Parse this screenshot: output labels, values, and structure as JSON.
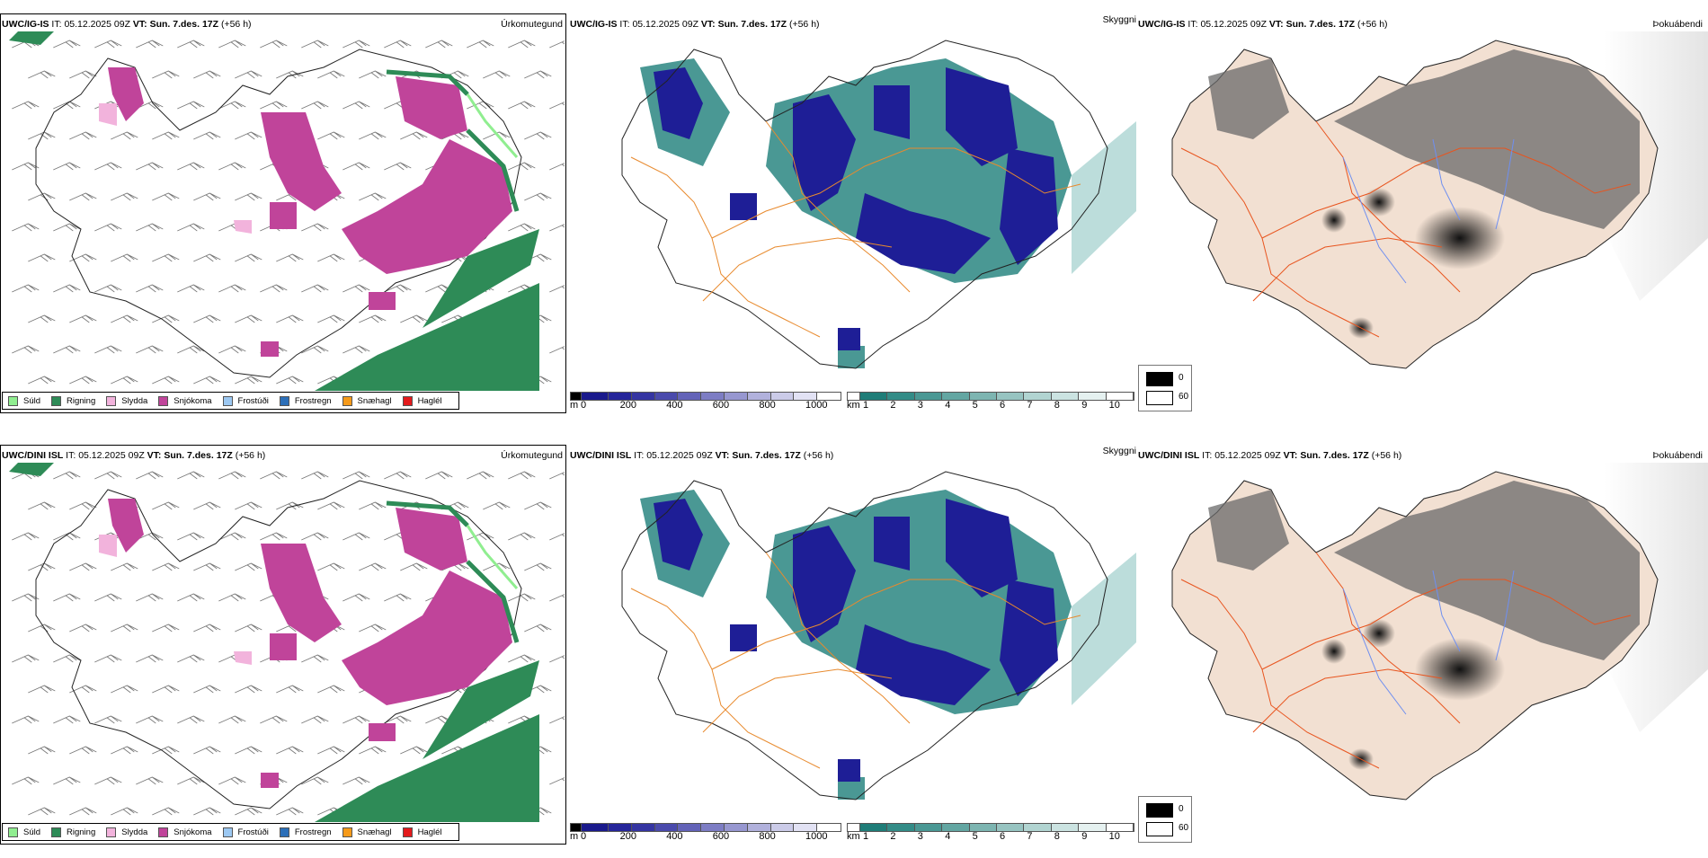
{
  "rows": [
    {
      "model": "UWC/IG-IS",
      "it_label": "IT:",
      "it_value": "05.12.2025 09Z",
      "vt_label": "VT:",
      "vt_value": "Sun. 7.des. 17Z",
      "lead": "(+56 h)"
    },
    {
      "model": "UWC/DINI ISL",
      "it_label": "IT:",
      "it_value": "05.12.2025 09Z",
      "vt_label": "VT:",
      "vt_value": "Sun. 7.des. 17Z",
      "lead": "(+56 h)"
    }
  ],
  "panels": {
    "precip_title": "Úrkomutegund",
    "cloud_title": "Skyggni",
    "fog_title": "Þokuábendi"
  },
  "precip_legend": [
    {
      "label": "Súld",
      "color": "#90ee90"
    },
    {
      "label": "Rigning",
      "color": "#2e8b57"
    },
    {
      "label": "Slydda",
      "color": "#f2b3dc"
    },
    {
      "label": "Snjókoma",
      "color": "#c0449a"
    },
    {
      "label": "Frostúði",
      "color": "#9cc8f2"
    },
    {
      "label": "Frostregn",
      "color": "#2c6fb8"
    },
    {
      "label": "Snæhagl",
      "color": "#f59a1a"
    },
    {
      "label": "Haglél",
      "color": "#e31a1c"
    }
  ],
  "cloudbase_bar": {
    "unit": "m",
    "ticks": [
      "0",
      "200",
      "400",
      "600",
      "800",
      "1000"
    ],
    "colors": [
      "#000000",
      "#1a1a8c",
      "#25259a",
      "#3535a2",
      "#4a4aac",
      "#6363b8",
      "#7d7dc4",
      "#9797d0",
      "#b1b1dc",
      "#cbcbe8",
      "#e2e2f4"
    ]
  },
  "visibility_bar": {
    "unit": "km",
    "ticks": [
      "1",
      "2",
      "3",
      "4",
      "5",
      "6",
      "7",
      "8",
      "9",
      "10"
    ],
    "colors": [
      "#ffffff",
      "#1f7d78",
      "#338c87",
      "#4a9894",
      "#63a6a2",
      "#7db5b1",
      "#97c4c1",
      "#b1d4d1",
      "#cbe3e1",
      "#e5f1f0",
      "#ffffff"
    ]
  },
  "fog_legend": [
    {
      "label": "0",
      "color": "#000000"
    },
    {
      "label": "60",
      "color": "#ffffff"
    }
  ],
  "map_colors": {
    "land_fog": "#f2e0d2",
    "road": "#e8541e",
    "road_orange": "#e88a2e",
    "river": "#6f8ff0",
    "coast": "#222222"
  }
}
